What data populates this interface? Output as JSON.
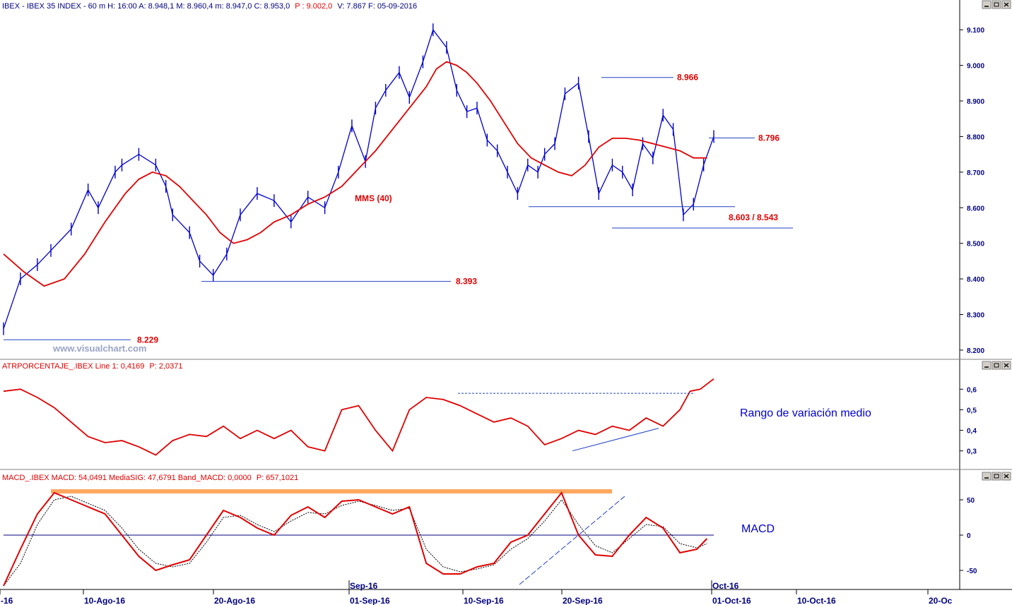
{
  "panels": {
    "price": {
      "header_main": "IBEX - IBEX 35 INDEX - 60 m H: 16:00 A: 8.948,1 M: 8.960,4 m: 8.947,0 C: 8.953,0",
      "header_p": "P : 9.002,0",
      "header_tail": "V: 7.867 F: 05-09-2016",
      "watermark": "www.visualchart.com",
      "ma_label": "MMS (40)"
    },
    "atr": {
      "header_main": "ATRPORCENTAJE_.IBEX Line 1: 0,4169",
      "header_p": "P: 2,0371",
      "note": "Rango de variación medio"
    },
    "macd": {
      "header_main": "MACD_.IBEX MACD: 54,0491 MediaSIG: 47,6791 Band_MACD: 0,0000",
      "header_p": "P: 657,1021",
      "note": "MACD"
    }
  },
  "window_buttons": [
    "minimize-icon",
    "restore-icon",
    "close-icon"
  ],
  "colors": {
    "price": "#0000cc",
    "ma": "#e00000",
    "levels": "#e00000",
    "macd_signal": "#000000",
    "macd_peak_band": "#ffa860",
    "axis_text": "#000080"
  },
  "chart_data": [
    {
      "type": "line",
      "title": "IBEX 35 INDEX - 60 m",
      "y_ticks": [
        8200,
        8300,
        8400,
        8500,
        8600,
        8700,
        8800,
        8900,
        9000,
        9100
      ],
      "y_tick_labels": [
        "8.200",
        "8.300",
        "8.400",
        "8.500",
        "8.600",
        "8.700",
        "8.800",
        "8.900",
        "9.000",
        "9.100"
      ],
      "ylim": [
        8180,
        9140
      ],
      "x_tick_labels": [
        "-16",
        "10-Ago-16",
        "20-Ago-16",
        "01-Sep-16",
        "10-Sep-16",
        "20-Sep-16",
        "01-Oct-16",
        "10-Oct-16",
        "20-Oc"
      ],
      "x_month_markers": [
        "Sep-16",
        "Oct-16"
      ],
      "series": [
        {
          "name": "IBEX",
          "x": [
            0,
            5,
            10,
            14,
            20,
            25,
            28,
            33,
            35,
            40,
            45,
            48,
            50,
            55,
            58,
            62,
            66,
            70,
            75,
            80,
            85,
            90,
            95,
            99,
            103,
            107,
            110,
            113,
            117,
            120,
            124,
            127,
            131,
            134,
            137,
            140,
            143,
            146,
            149,
            152,
            155,
            158,
            160,
            163,
            166,
            170,
            173,
            176,
            180,
            183,
            186,
            189,
            192,
            195,
            198,
            201,
            204,
            207,
            210
          ],
          "y": [
            8260,
            8400,
            8440,
            8480,
            8540,
            8650,
            8600,
            8700,
            8720,
            8750,
            8720,
            8660,
            8580,
            8530,
            8450,
            8410,
            8470,
            8580,
            8640,
            8620,
            8560,
            8630,
            8600,
            8700,
            8830,
            8730,
            8880,
            8930,
            8980,
            8910,
            9010,
            9100,
            9050,
            8930,
            8870,
            8880,
            8790,
            8760,
            8700,
            8640,
            8720,
            8700,
            8750,
            8780,
            8920,
            8950,
            8800,
            8640,
            8720,
            8700,
            8650,
            8780,
            8740,
            8860,
            8820,
            8580,
            8610,
            8720,
            8800
          ]
        },
        {
          "name": "MMS (40)",
          "x": [
            0,
            6,
            12,
            18,
            24,
            30,
            36,
            40,
            44,
            48,
            52,
            56,
            60,
            64,
            68,
            72,
            76,
            80,
            85,
            90,
            95,
            100,
            105,
            110,
            115,
            120,
            125,
            128,
            131,
            134,
            137,
            140,
            144,
            148,
            152,
            156,
            160,
            164,
            168,
            172,
            176,
            180,
            184,
            188,
            192,
            196,
            200,
            204,
            208
          ],
          "y": [
            8470,
            8420,
            8380,
            8400,
            8470,
            8560,
            8640,
            8680,
            8700,
            8690,
            8660,
            8620,
            8580,
            8530,
            8500,
            8510,
            8530,
            8560,
            8580,
            8610,
            8630,
            8660,
            8710,
            8760,
            8820,
            8880,
            8940,
            8990,
            9010,
            9000,
            8980,
            8950,
            8900,
            8840,
            8780,
            8740,
            8720,
            8700,
            8690,
            8720,
            8770,
            8795,
            8795,
            8790,
            8780,
            8770,
            8760,
            8740,
            8740
          ]
        }
      ],
      "levels": [
        {
          "label": "8.229",
          "value": 8229
        },
        {
          "label": "8.393",
          "value": 8393
        },
        {
          "label": "8.966",
          "value": 8966
        },
        {
          "label": "8.796",
          "value": 8796
        },
        {
          "label": "8.603 / 8.543",
          "value": 8603,
          "value2": 8543
        }
      ]
    },
    {
      "type": "line",
      "title": "ATRPORCENTAJE_.IBEX",
      "y_ticks": [
        0.3,
        0.4,
        0.5,
        0.6
      ],
      "y_tick_labels": [
        "0,3",
        "0,4",
        "0,5",
        "0,6"
      ],
      "ylim": [
        0.22,
        0.68
      ],
      "series": [
        {
          "name": "Line 1",
          "x": [
            0,
            5,
            10,
            15,
            20,
            25,
            30,
            35,
            40,
            45,
            50,
            55,
            60,
            65,
            70,
            75,
            80,
            85,
            90,
            95,
            100,
            105,
            110,
            115,
            120,
            125,
            130,
            135,
            140,
            145,
            150,
            155,
            160,
            165,
            170,
            175,
            180,
            185,
            190,
            195,
            200,
            203,
            206,
            210
          ],
          "y": [
            0.59,
            0.6,
            0.56,
            0.51,
            0.44,
            0.37,
            0.34,
            0.35,
            0.32,
            0.28,
            0.35,
            0.38,
            0.37,
            0.42,
            0.36,
            0.4,
            0.36,
            0.4,
            0.32,
            0.3,
            0.5,
            0.52,
            0.4,
            0.3,
            0.5,
            0.56,
            0.55,
            0.52,
            0.48,
            0.44,
            0.46,
            0.42,
            0.33,
            0.36,
            0.4,
            0.38,
            0.42,
            0.4,
            0.46,
            0.42,
            0.5,
            0.59,
            0.6,
            0.65
          ]
        }
      ]
    },
    {
      "type": "line",
      "title": "MACD_.IBEX",
      "y_ticks": [
        -50,
        0,
        50
      ],
      "y_tick_labels": [
        "-50",
        "0",
        "50"
      ],
      "ylim": [
        -75,
        72
      ],
      "series": [
        {
          "name": "MACD",
          "x": [
            0,
            5,
            10,
            15,
            20,
            25,
            30,
            35,
            40,
            45,
            50,
            55,
            60,
            65,
            70,
            75,
            80,
            85,
            90,
            95,
            100,
            105,
            110,
            115,
            120,
            125,
            130,
            135,
            140,
            145,
            150,
            155,
            160,
            165,
            170,
            175,
            180,
            185,
            190,
            195,
            200,
            205,
            208
          ],
          "y": [
            -72,
            -20,
            30,
            60,
            50,
            40,
            30,
            0,
            -30,
            -50,
            -42,
            -35,
            0,
            35,
            25,
            10,
            0,
            28,
            40,
            25,
            48,
            50,
            40,
            30,
            40,
            -40,
            -55,
            -55,
            -45,
            -40,
            -10,
            0,
            30,
            60,
            0,
            -28,
            -30,
            0,
            25,
            10,
            -25,
            -20,
            -5
          ]
        },
        {
          "name": "MediaSIG",
          "x": [
            0,
            5,
            10,
            15,
            20,
            25,
            30,
            35,
            40,
            45,
            50,
            55,
            60,
            65,
            70,
            75,
            80,
            85,
            90,
            95,
            100,
            105,
            110,
            115,
            120,
            125,
            130,
            135,
            140,
            145,
            150,
            155,
            160,
            165,
            170,
            175,
            180,
            185,
            190,
            195,
            200,
            205,
            208
          ],
          "y": [
            -72,
            -40,
            15,
            50,
            55,
            45,
            35,
            10,
            -20,
            -40,
            -45,
            -40,
            -10,
            25,
            28,
            15,
            5,
            20,
            32,
            30,
            42,
            48,
            42,
            35,
            38,
            -20,
            -45,
            -52,
            -48,
            -42,
            -20,
            -5,
            20,
            50,
            15,
            -15,
            -25,
            -5,
            15,
            12,
            -12,
            -18,
            -12
          ]
        }
      ]
    }
  ]
}
